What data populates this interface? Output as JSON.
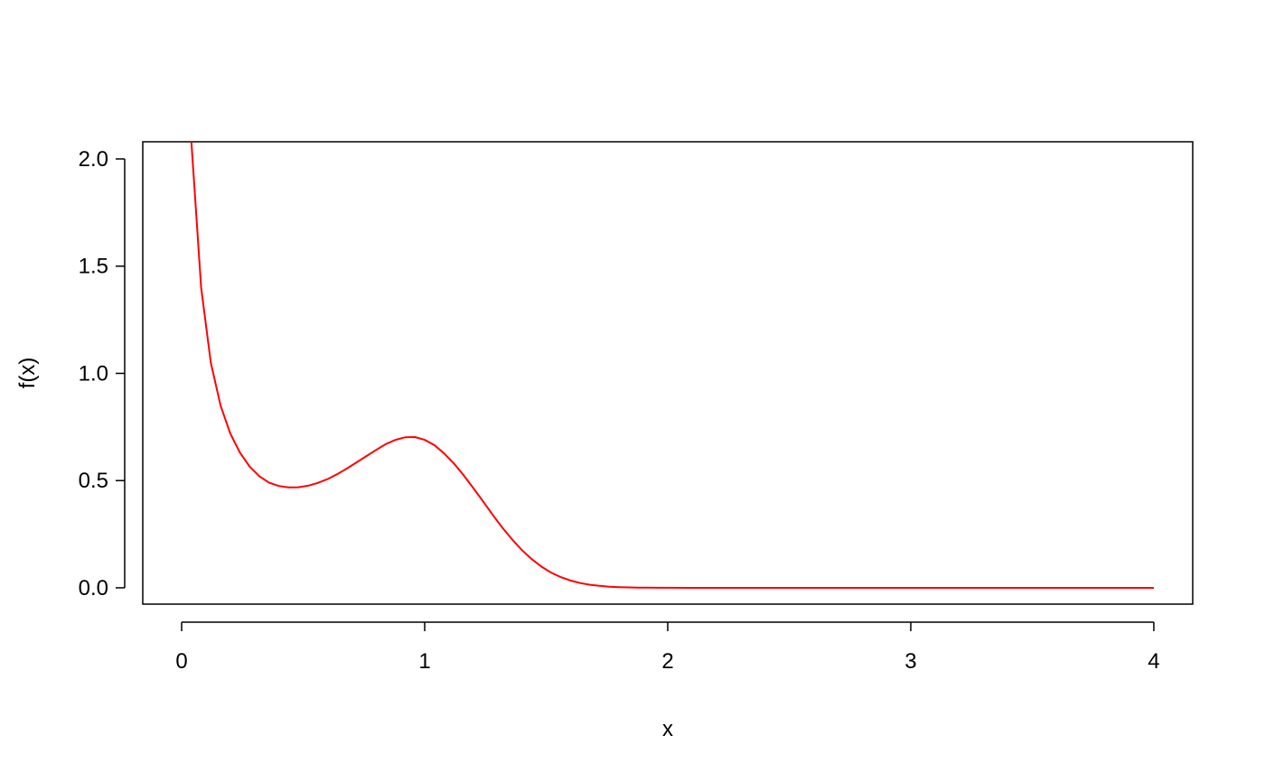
{
  "chart_data": {
    "type": "line",
    "title": "",
    "xlabel": "x",
    "ylabel": "f(x)",
    "xlim": [
      -0.16,
      4.16
    ],
    "ylim": [
      -0.076,
      2.08
    ],
    "x_ticks": [
      0,
      1,
      2,
      3,
      4
    ],
    "x_tick_labels": [
      "0",
      "1",
      "2",
      "3",
      "4"
    ],
    "y_ticks": [
      0.0,
      0.5,
      1.0,
      1.5,
      2.0
    ],
    "y_tick_labels": [
      "0.0",
      "0.5",
      "1.0",
      "1.5",
      "2.0"
    ],
    "grid": false,
    "series": [
      {
        "color": "#ff0000",
        "x": [
          0.04,
          0.08,
          0.12,
          0.16,
          0.2,
          0.24,
          0.28,
          0.32,
          0.36,
          0.4,
          0.44,
          0.48,
          0.52,
          0.56,
          0.6,
          0.64,
          0.68,
          0.72,
          0.76,
          0.8,
          0.84,
          0.88,
          0.92,
          0.96,
          1.0,
          1.04,
          1.08,
          1.12,
          1.16,
          1.2,
          1.24,
          1.28,
          1.32,
          1.36,
          1.4,
          1.44,
          1.48,
          1.52,
          1.56,
          1.6,
          1.64,
          1.68,
          1.72,
          1.76,
          1.8,
          1.84,
          1.88,
          1.92,
          1.96,
          2.0,
          2.2,
          2.4,
          2.6,
          2.8,
          3.0,
          3.2,
          3.4,
          3.6,
          3.8,
          4.0
        ],
        "y": [
          2.08,
          1.4,
          1.05,
          0.85,
          0.72,
          0.63,
          0.565,
          0.52,
          0.49,
          0.475,
          0.468,
          0.469,
          0.476,
          0.489,
          0.507,
          0.53,
          0.556,
          0.585,
          0.614,
          0.643,
          0.67,
          0.69,
          0.702,
          0.703,
          0.69,
          0.665,
          0.627,
          0.58,
          0.525,
          0.465,
          0.403,
          0.34,
          0.28,
          0.225,
          0.176,
          0.134,
          0.099,
          0.071,
          0.05,
          0.034,
          0.022,
          0.014,
          0.009,
          0.005,
          0.003,
          0.002,
          0.001,
          0.0005,
          0.0002,
          0.0001,
          0.0,
          0.0,
          0.0,
          0.0,
          0.0,
          0.0,
          0.0,
          0.0,
          0.0,
          0.0
        ]
      }
    ]
  }
}
